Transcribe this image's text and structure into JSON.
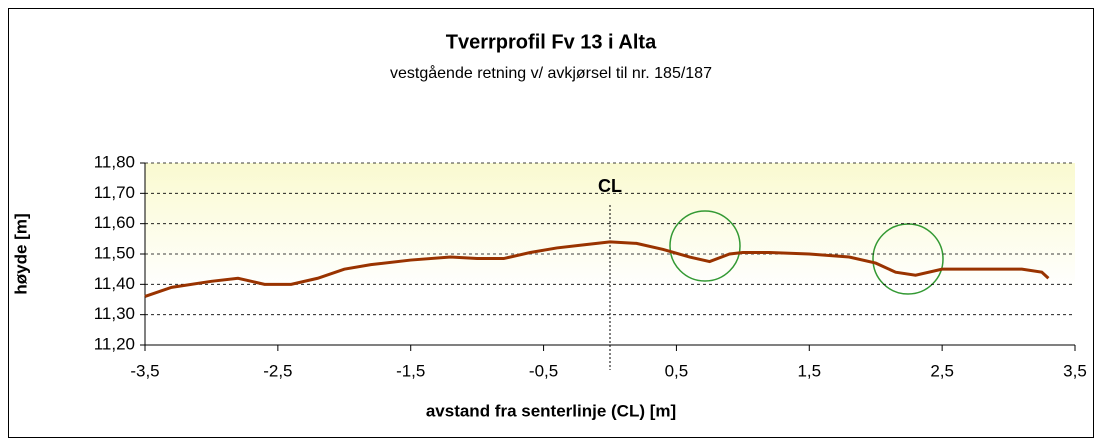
{
  "chart_data": {
    "type": "line",
    "title": "Tverrprofil Fv 13 i Alta",
    "subtitle": "vestgående retning v/ avkjørsel til nr. 185/187",
    "xlabel": "avstand fra senterlinje (CL) [m]",
    "ylabel": "høyde [m]",
    "annotation": {
      "text": "CL",
      "x": 0
    },
    "series": [
      {
        "color": "#993300",
        "x": [
          -3.5,
          -3.3,
          -3.0,
          -2.8,
          -2.6,
          -2.4,
          -2.2,
          -2.0,
          -1.8,
          -1.5,
          -1.2,
          -1.0,
          -0.8,
          -0.6,
          -0.4,
          -0.2,
          0.0,
          0.2,
          0.4,
          0.6,
          0.75,
          0.9,
          1.0,
          1.2,
          1.5,
          1.8,
          2.0,
          2.15,
          2.3,
          2.5,
          2.8,
          3.1,
          3.25,
          3.3
        ],
        "values": [
          11.36,
          11.39,
          11.41,
          11.42,
          11.4,
          11.4,
          11.42,
          11.45,
          11.465,
          11.48,
          11.49,
          11.485,
          11.485,
          11.505,
          11.52,
          11.53,
          11.54,
          11.535,
          11.515,
          11.49,
          11.475,
          11.5,
          11.505,
          11.505,
          11.5,
          11.49,
          11.47,
          11.44,
          11.43,
          11.45,
          11.45,
          11.45,
          11.44,
          11.42
        ]
      }
    ],
    "xlim": [
      -3.5,
      3.5
    ],
    "xticks": [
      {
        "value": -3.5,
        "label": "-3,5"
      },
      {
        "value": -2.5,
        "label": "-2,5"
      },
      {
        "value": -1.5,
        "label": "-1,5"
      },
      {
        "value": -0.5,
        "label": "-0,5"
      },
      {
        "value": 0.5,
        "label": "0,5"
      },
      {
        "value": 1.5,
        "label": "1,5"
      },
      {
        "value": 2.5,
        "label": "2,5"
      },
      {
        "value": 3.5,
        "label": "3,5"
      }
    ],
    "ylim": [
      11.2,
      11.8
    ],
    "yticks": [
      {
        "value": 11.2,
        "label": "11,20"
      },
      {
        "value": 11.3,
        "label": "11,30"
      },
      {
        "value": 11.4,
        "label": "11,40"
      },
      {
        "value": 11.5,
        "label": "11,50"
      },
      {
        "value": 11.6,
        "label": "11,60"
      },
      {
        "value": 11.7,
        "label": "11,70"
      },
      {
        "value": 11.8,
        "label": "11,80"
      }
    ],
    "grid": true
  }
}
